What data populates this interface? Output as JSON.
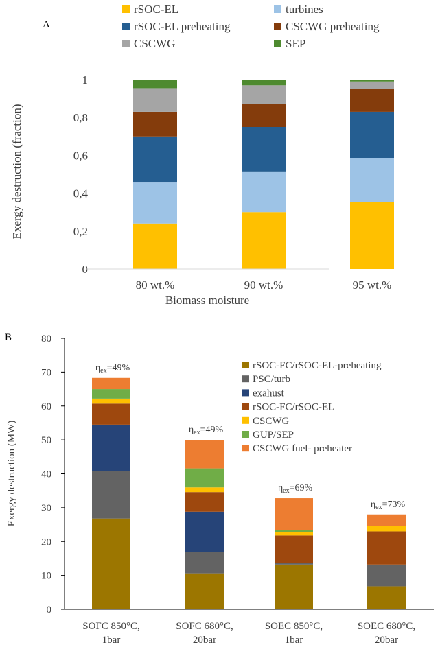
{
  "chart_data": [
    {
      "type": "bar",
      "stacked": true,
      "panel_label": "A",
      "title": "",
      "xlabel": "Biomass moisture",
      "ylabel": "Exergy destruction (fraction)",
      "ylim": [
        0,
        1
      ],
      "yticks": [
        "0",
        "0,2",
        "0,4",
        "0,6",
        "0,8",
        "1"
      ],
      "ytick_values": [
        0,
        0.2,
        0.4,
        0.6,
        0.8,
        1
      ],
      "grid": false,
      "legend_position": "top",
      "categories": [
        "80 wt.%",
        "90 wt.%",
        "95 wt.%"
      ],
      "series": [
        {
          "name": "rSOC-EL",
          "color": "#FFC000",
          "values": [
            0.24,
            0.3,
            0.355
          ]
        },
        {
          "name": "turbines",
          "color": "#9DC3E6",
          "values": [
            0.22,
            0.215,
            0.23
          ]
        },
        {
          "name": "rSOC-EL preheating",
          "color": "#255E91",
          "values": [
            0.24,
            0.235,
            0.245
          ]
        },
        {
          "name": "CSCWG preheating",
          "color": "#843C0C",
          "values": [
            0.13,
            0.12,
            0.12
          ]
        },
        {
          "name": "CSCWG",
          "color": "#A5A5A5",
          "values": [
            0.125,
            0.1,
            0.04
          ]
        },
        {
          "name": "SEP",
          "color": "#4E8A2F",
          "values": [
            0.045,
            0.03,
            0.01
          ]
        }
      ]
    },
    {
      "type": "bar",
      "stacked": true,
      "panel_label": "B",
      "title": "",
      "xlabel": "",
      "ylabel": "Exergy destruction (MW)",
      "ylim": [
        0,
        80
      ],
      "yticks": [
        "0",
        "10",
        "20",
        "30",
        "40",
        "50",
        "60",
        "70",
        "80"
      ],
      "ytick_values": [
        0,
        10,
        20,
        30,
        40,
        50,
        60,
        70,
        80
      ],
      "grid": false,
      "legend_position": "top-right",
      "categories": [
        [
          "SOFC 850°C,",
          "1bar"
        ],
        [
          "SOFC 680°C,",
          "20bar"
        ],
        [
          "SOEC 850°C,",
          "1bar"
        ],
        [
          "SOEC 680°C,",
          "20bar"
        ]
      ],
      "annotations": [
        {
          "eta": "η",
          "sub": "ex",
          "text": "=49%"
        },
        {
          "eta": "η",
          "sub": "ex",
          "text": "=49%"
        },
        {
          "eta": "η",
          "sub": "ex",
          "text": "=69%"
        },
        {
          "eta": "η",
          "sub": "ex",
          "text": "=73%"
        }
      ],
      "series": [
        {
          "name": "rSOC-FC/rSOC-EL-preheating",
          "color": "#9C7600",
          "values": [
            26.8,
            10.6,
            13.2,
            6.8
          ]
        },
        {
          "name": "PSC/turb",
          "color": "#636363",
          "values": [
            14.1,
            6.4,
            0.5,
            6.4
          ]
        },
        {
          "name": "exahust",
          "color": "#264478",
          "values": [
            13.6,
            11.8,
            0,
            0
          ]
        },
        {
          "name": "rSOC-FC/rSOC-EL",
          "color": "#9E480E",
          "values": [
            6.2,
            5.8,
            8.1,
            9.8
          ]
        },
        {
          "name": "CSCWG",
          "color": "#FFC000",
          "values": [
            1.5,
            1.4,
            1.0,
            1.6
          ]
        },
        {
          "name": "GUP/SEP",
          "color": "#70AD47",
          "values": [
            2.8,
            5.6,
            0.5,
            0
          ]
        },
        {
          "name": "CSCWG fuel- preheater",
          "color": "#ED7D31",
          "values": [
            3.3,
            8.4,
            9.5,
            3.4
          ]
        }
      ]
    }
  ]
}
